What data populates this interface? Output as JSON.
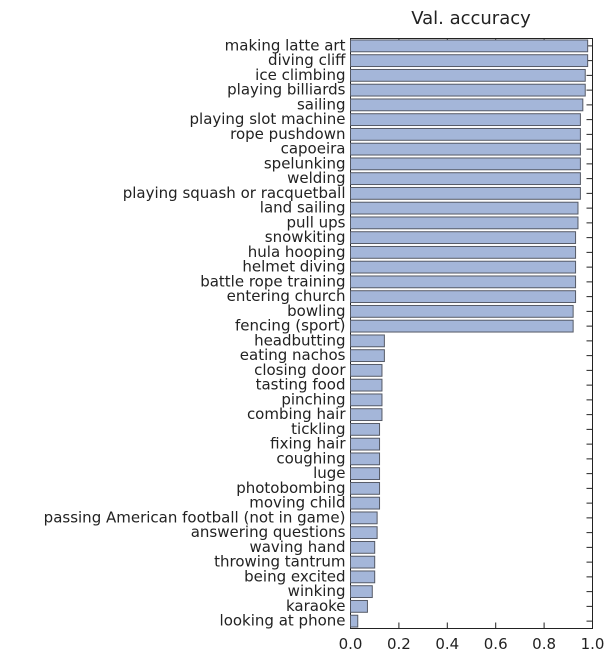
{
  "chart_data": {
    "type": "barh",
    "title": "Val. accuracy",
    "categories": [
      "making latte art",
      "diving cliff",
      "ice climbing",
      "playing billiards",
      "sailing",
      "playing slot machine",
      "rope pushdown",
      "capoeira",
      "spelunking",
      "welding",
      "playing squash or racquetball",
      "land sailing",
      "pull ups",
      "snowkiting",
      "hula hooping",
      "helmet diving",
      "battle rope training",
      "entering church",
      "bowling",
      "fencing (sport)",
      "headbutting",
      "eating nachos",
      "closing door",
      "tasting food",
      "pinching",
      "combing hair",
      "tickling",
      "fixing hair",
      "coughing",
      "luge",
      "photobombing",
      "moving child",
      "passing American football (not in game)",
      "answering questions",
      "waving hand",
      "throwing tantrum",
      "being excited",
      "winking",
      "karaoke",
      "looking at phone"
    ],
    "values": [
      0.98,
      0.98,
      0.97,
      0.97,
      0.96,
      0.95,
      0.95,
      0.95,
      0.95,
      0.95,
      0.95,
      0.94,
      0.94,
      0.93,
      0.93,
      0.93,
      0.93,
      0.93,
      0.92,
      0.92,
      0.14,
      0.14,
      0.13,
      0.13,
      0.13,
      0.13,
      0.12,
      0.12,
      0.12,
      0.12,
      0.12,
      0.12,
      0.11,
      0.11,
      0.1,
      0.1,
      0.1,
      0.09,
      0.07,
      0.03
    ],
    "color": "#a4b6d9",
    "xlim": [
      0,
      1
    ],
    "xticks": [
      {
        "value": 0,
        "label": "0.0"
      },
      {
        "value": 0.2,
        "label": "0.2"
      },
      {
        "value": 0.4,
        "label": "0.4"
      },
      {
        "value": 0.6,
        "label": "0.6"
      },
      {
        "value": 0.8,
        "label": "0.8"
      },
      {
        "value": 1,
        "label": "1.0"
      }
    ]
  }
}
